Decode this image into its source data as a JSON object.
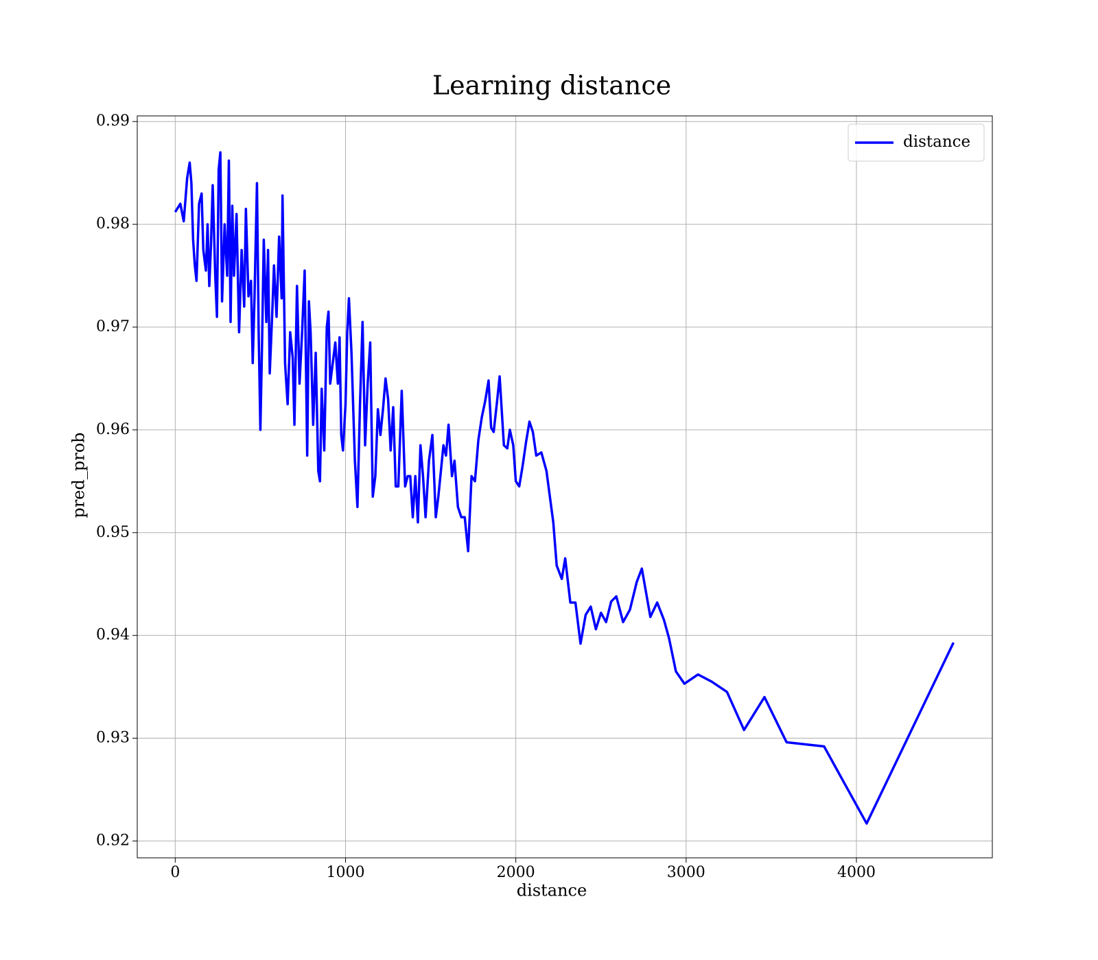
{
  "chart_data": {
    "type": "line",
    "title": "Learning distance",
    "x_label": "distance",
    "y_label": "pred_prob",
    "xlim": [
      -223,
      4798
    ],
    "ylim": [
      0.91836,
      0.99055
    ],
    "xticks": [
      0,
      1000,
      2000,
      3000,
      4000
    ],
    "yticks": [
      0.92,
      0.93,
      0.94,
      0.95,
      0.96,
      0.97,
      0.98,
      0.99
    ],
    "grid": true,
    "legend_loc": "upper right",
    "x": [
      0,
      30,
      50,
      70,
      85,
      95,
      105,
      115,
      125,
      140,
      155,
      165,
      180,
      190,
      200,
      210,
      220,
      235,
      245,
      255,
      265,
      275,
      290,
      305,
      315,
      325,
      335,
      345,
      360,
      375,
      390,
      405,
      415,
      430,
      445,
      455,
      465,
      480,
      490,
      500,
      510,
      520,
      535,
      545,
      555,
      570,
      580,
      595,
      610,
      625,
      630,
      645,
      660,
      675,
      690,
      700,
      715,
      730,
      745,
      760,
      775,
      785,
      795,
      810,
      825,
      840,
      850,
      860,
      875,
      890,
      900,
      910,
      925,
      940,
      955,
      965,
      975,
      985,
      1000,
      1010,
      1020,
      1035,
      1055,
      1070,
      1085,
      1100,
      1115,
      1130,
      1145,
      1160,
      1175,
      1190,
      1205,
      1220,
      1235,
      1250,
      1265,
      1280,
      1295,
      1310,
      1330,
      1350,
      1365,
      1380,
      1395,
      1410,
      1425,
      1440,
      1455,
      1470,
      1490,
      1510,
      1530,
      1545,
      1560,
      1575,
      1590,
      1605,
      1625,
      1640,
      1660,
      1680,
      1700,
      1720,
      1740,
      1760,
      1780,
      1800,
      1820,
      1840,
      1855,
      1870,
      1890,
      1905,
      1930,
      1950,
      1965,
      1985,
      2000,
      2020,
      2040,
      2060,
      2080,
      2100,
      2120,
      2150,
      2180,
      2220,
      2240,
      2270,
      2290,
      2320,
      2350,
      2380,
      2410,
      2440,
      2470,
      2500,
      2530,
      2560,
      2590,
      2630,
      2670,
      2710,
      2740,
      2790,
      2830,
      2870,
      2900,
      2940,
      2990,
      3070,
      3150,
      3240,
      3340,
      3460,
      3590,
      3810,
      4060,
      4570
    ],
    "series": [
      {
        "name": "distance",
        "color": "#0000ff",
        "values": [
          0.9812,
          0.982,
          0.9803,
          0.9845,
          0.986,
          0.984,
          0.9785,
          0.976,
          0.9745,
          0.982,
          0.983,
          0.9775,
          0.9755,
          0.98,
          0.974,
          0.978,
          0.9838,
          0.975,
          0.971,
          0.9853,
          0.987,
          0.9725,
          0.98,
          0.975,
          0.9862,
          0.9705,
          0.9818,
          0.975,
          0.981,
          0.9695,
          0.9775,
          0.972,
          0.9815,
          0.973,
          0.9745,
          0.9665,
          0.9725,
          0.984,
          0.9695,
          0.96,
          0.9685,
          0.9785,
          0.9705,
          0.9775,
          0.9655,
          0.9715,
          0.976,
          0.971,
          0.9788,
          0.9728,
          0.9828,
          0.9665,
          0.9625,
          0.9695,
          0.967,
          0.9605,
          0.974,
          0.9645,
          0.9695,
          0.9755,
          0.9575,
          0.9725,
          0.9695,
          0.9605,
          0.9675,
          0.956,
          0.955,
          0.964,
          0.958,
          0.97,
          0.9715,
          0.9645,
          0.9665,
          0.9685,
          0.9645,
          0.969,
          0.9595,
          0.958,
          0.9625,
          0.9695,
          0.9728,
          0.9675,
          0.957,
          0.9525,
          0.9625,
          0.9705,
          0.9585,
          0.9645,
          0.9685,
          0.9535,
          0.9555,
          0.962,
          0.9595,
          0.962,
          0.965,
          0.963,
          0.958,
          0.9622,
          0.9545,
          0.9545,
          0.9638,
          0.9545,
          0.9555,
          0.9555,
          0.9515,
          0.9555,
          0.951,
          0.9585,
          0.9555,
          0.9515,
          0.957,
          0.9595,
          0.9515,
          0.9535,
          0.956,
          0.9585,
          0.9575,
          0.9605,
          0.9555,
          0.957,
          0.9525,
          0.9515,
          0.9515,
          0.9482,
          0.9555,
          0.955,
          0.959,
          0.9612,
          0.9628,
          0.9648,
          0.9602,
          0.9598,
          0.9628,
          0.9652,
          0.9585,
          0.9582,
          0.96,
          0.9585,
          0.955,
          0.9545,
          0.9565,
          0.9588,
          0.9608,
          0.9598,
          0.9575,
          0.9578,
          0.956,
          0.951,
          0.9468,
          0.9455,
          0.9475,
          0.9432,
          0.9432,
          0.9392,
          0.942,
          0.9428,
          0.9406,
          0.9422,
          0.9413,
          0.9433,
          0.9438,
          0.9413,
          0.9425,
          0.9452,
          0.9465,
          0.9418,
          0.9432,
          0.9415,
          0.9397,
          0.9365,
          0.9353,
          0.9362,
          0.9355,
          0.9345,
          0.9308,
          0.934,
          0.9296,
          0.9292,
          0.9217,
          0.9393
        ]
      }
    ]
  }
}
